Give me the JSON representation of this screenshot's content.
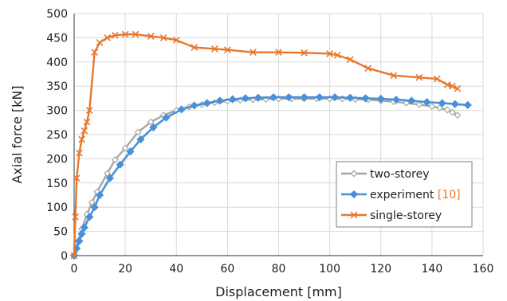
{
  "chart_data": {
    "type": "line",
    "xlabel": "Displacement [mm]",
    "ylabel": "Axial force [kN]",
    "xlim": [
      0,
      160
    ],
    "ylim": [
      0,
      500
    ],
    "xticks": [
      0,
      20,
      40,
      60,
      80,
      100,
      120,
      140,
      160
    ],
    "yticks": [
      0,
      50,
      100,
      150,
      200,
      250,
      300,
      350,
      400,
      450,
      500
    ],
    "grid": true,
    "legend_position": "bottom-right",
    "series": [
      {
        "name": "two-storey",
        "color": "#a6a6a6",
        "marker": "diamond-open",
        "x": [
          0,
          1.5,
          3,
          5,
          7,
          9,
          13,
          16,
          20,
          25,
          30,
          35,
          40,
          45,
          50,
          55,
          60,
          65,
          70,
          75,
          80,
          85,
          90,
          95,
          100,
          105,
          110,
          115,
          120,
          125,
          130,
          135,
          140,
          143,
          146,
          148,
          150
        ],
        "y": [
          0,
          30,
          55,
          85,
          110,
          132,
          170,
          198,
          222,
          255,
          276,
          290,
          300,
          307,
          312,
          316,
          319,
          321,
          322,
          323,
          324,
          324,
          324,
          324,
          324,
          324,
          323,
          322,
          320,
          318,
          315,
          312,
          308,
          305,
          301,
          296,
          290
        ]
      },
      {
        "name": "experiment",
        "name_suffix": "[10]",
        "color": "#4a90d9",
        "marker": "diamond-filled",
        "x": [
          0,
          1,
          2,
          3,
          4,
          6,
          8,
          10,
          14,
          18,
          22,
          26,
          31,
          36,
          42,
          47,
          52,
          57,
          62,
          67,
          72,
          78,
          84,
          90,
          96,
          102,
          108,
          114,
          120,
          126,
          132,
          138,
          144,
          149,
          154
        ],
        "y": [
          0,
          15,
          30,
          45,
          58,
          80,
          100,
          125,
          160,
          188,
          215,
          240,
          265,
          285,
          302,
          310,
          315,
          320,
          323,
          325,
          326,
          327,
          327,
          327,
          327,
          327,
          326,
          325,
          324,
          322,
          320,
          317,
          315,
          313,
          311
        ]
      },
      {
        "name": "single-storey",
        "color": "#e8772e",
        "marker": "x",
        "x": [
          0,
          0.5,
          1,
          2,
          3,
          4,
          5,
          6,
          8,
          10,
          13,
          16,
          20,
          24,
          30,
          35,
          40,
          47,
          55,
          60,
          70,
          80,
          90,
          100,
          103,
          108,
          115,
          125,
          135,
          142,
          146,
          148,
          150
        ],
        "y": [
          0,
          80,
          160,
          212,
          240,
          258,
          276,
          300,
          420,
          440,
          450,
          455,
          457,
          457,
          453,
          450,
          445,
          430,
          427,
          425,
          420,
          420,
          419,
          417,
          414,
          405,
          387,
          372,
          368,
          365,
          353,
          350,
          345
        ]
      }
    ]
  }
}
